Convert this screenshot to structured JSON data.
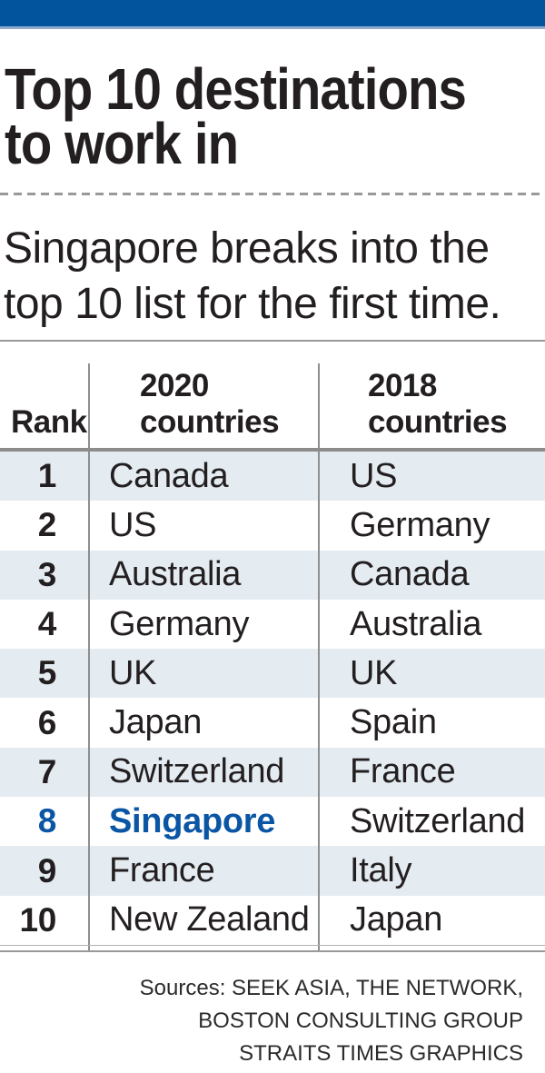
{
  "colors": {
    "brand_blue": "#02549c",
    "brand_blue_light": "#8fabce",
    "highlight_blue": "#0a56a4",
    "row_alt_blue": "#e4ecf2",
    "line_gray": "#999999",
    "text_dark": "#231f20"
  },
  "title": {
    "lines": [
      "Top 10 destinations",
      "to work in"
    ]
  },
  "subtitle": {
    "lines": [
      "Singapore breaks into the",
      "top 10 list for the first time."
    ]
  },
  "table": {
    "headers": {
      "rank": "Rank",
      "col_2020": {
        "line1": "2020",
        "line2": "countries"
      },
      "col_2018": {
        "line1": "2018",
        "line2": "countries"
      }
    },
    "rows": [
      {
        "rank": "1",
        "country_2020": "Canada",
        "country_2018": "US"
      },
      {
        "rank": "2",
        "country_2020": "US",
        "country_2018": "Germany"
      },
      {
        "rank": "3",
        "country_2020": "Australia",
        "country_2018": "Canada"
      },
      {
        "rank": "4",
        "country_2020": "Germany",
        "country_2018": "Australia"
      },
      {
        "rank": "5",
        "country_2020": "UK",
        "country_2018": "UK"
      },
      {
        "rank": "6",
        "country_2020": "Japan",
        "country_2018": "Spain"
      },
      {
        "rank": "7",
        "country_2020": "Switzerland",
        "country_2018": "France"
      },
      {
        "rank": "8",
        "country_2020": "Singapore",
        "country_2018": "Switzerland",
        "highlight": true
      },
      {
        "rank": "9",
        "country_2020": "France",
        "country_2018": "Italy"
      },
      {
        "rank": "10",
        "country_2020": "New Zealand",
        "country_2018": "Japan"
      }
    ]
  },
  "sources": {
    "lines": [
      "Sources: SEEK ASIA, THE NETWORK,",
      "BOSTON CONSULTING GROUP",
      "STRAITS TIMES GRAPHICS"
    ]
  },
  "chart_data": {
    "type": "table",
    "title": "Top 10 destinations to work in",
    "subtitle": "Singapore breaks into the top 10 list for the first time.",
    "columns": [
      "Rank",
      "2020 countries",
      "2018 countries"
    ],
    "rows": [
      [
        1,
        "Canada",
        "US"
      ],
      [
        2,
        "US",
        "Germany"
      ],
      [
        3,
        "Australia",
        "Canada"
      ],
      [
        4,
        "Germany",
        "Australia"
      ],
      [
        5,
        "UK",
        "UK"
      ],
      [
        6,
        "Japan",
        "Spain"
      ],
      [
        7,
        "Switzerland",
        "France"
      ],
      [
        8,
        "Singapore",
        "Switzerland"
      ],
      [
        9,
        "France",
        "Italy"
      ],
      [
        10,
        "New Zealand",
        "Japan"
      ]
    ],
    "highlighted_cell": {
      "rank": 8,
      "column": "2020 countries",
      "value": "Singapore",
      "color": "#0a56a4"
    },
    "layout": {
      "alternating_row_shading": true,
      "shaded_rows": [
        1,
        3,
        5,
        7,
        9
      ]
    }
  }
}
